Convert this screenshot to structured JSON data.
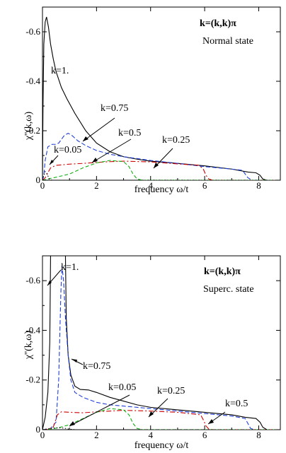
{
  "chart_data": [
    {
      "type": "line",
      "title_line1": "k=(k,k)π",
      "title_line2": "Normal state",
      "xlabel": "frequency ω/t",
      "ylabel": "χ''(k,ω)",
      "xlim": [
        0,
        8.8
      ],
      "ylim": [
        0,
        -0.7
      ],
      "x_ticks": [
        0,
        2,
        4,
        6,
        8
      ],
      "y_ticks": [
        0,
        -0.2,
        -0.4,
        -0.6
      ],
      "x_tick_labels": [
        "0",
        "2",
        "4",
        "6",
        "8"
      ],
      "y_tick_labels": [
        "0",
        "-0.2",
        "-0.4",
        "-0.6"
      ],
      "series": [
        {
          "name": "k=1.",
          "color": "#000000",
          "dash": "",
          "points": [
            [
              0,
              0
            ],
            [
              0.02,
              -0.3
            ],
            [
              0.05,
              -0.55
            ],
            [
              0.1,
              -0.64
            ],
            [
              0.15,
              -0.66
            ],
            [
              0.22,
              -0.62
            ],
            [
              0.3,
              -0.55
            ],
            [
              0.4,
              -0.49
            ],
            [
              0.5,
              -0.44
            ],
            [
              0.7,
              -0.375
            ],
            [
              0.9,
              -0.33
            ],
            [
              1.2,
              -0.27
            ],
            [
              1.6,
              -0.2
            ],
            [
              2,
              -0.15
            ],
            [
              2.5,
              -0.115
            ],
            [
              3,
              -0.095
            ],
            [
              3.5,
              -0.085
            ],
            [
              4,
              -0.077
            ],
            [
              5,
              -0.068
            ],
            [
              6,
              -0.058
            ],
            [
              7,
              -0.045
            ],
            [
              7.6,
              -0.033
            ],
            [
              7.9,
              -0.03
            ],
            [
              8.05,
              -0.02
            ],
            [
              8.15,
              -0.005
            ],
            [
              8.3,
              0
            ],
            [
              8.8,
              0
            ]
          ]
        },
        {
          "name": "k=0.75",
          "color": "#1f3fd9",
          "dash": "6,3",
          "points": [
            [
              0,
              0
            ],
            [
              0.05,
              -0.02
            ],
            [
              0.1,
              -0.08
            ],
            [
              0.2,
              -0.135
            ],
            [
              0.35,
              -0.145
            ],
            [
              0.5,
              -0.145
            ],
            [
              0.6,
              -0.15
            ],
            [
              0.8,
              -0.18
            ],
            [
              0.95,
              -0.19
            ],
            [
              1.1,
              -0.18
            ],
            [
              1.3,
              -0.16
            ],
            [
              1.6,
              -0.14
            ],
            [
              2,
              -0.12
            ],
            [
              2.5,
              -0.105
            ],
            [
              3,
              -0.095
            ],
            [
              4,
              -0.08
            ],
            [
              5,
              -0.068
            ],
            [
              6,
              -0.055
            ],
            [
              7,
              -0.045
            ],
            [
              7.4,
              -0.04
            ],
            [
              7.5,
              -0.025
            ],
            [
              7.6,
              -0.01
            ],
            [
              7.75,
              0
            ],
            [
              8.8,
              0
            ]
          ]
        },
        {
          "name": "k=0.5",
          "color": "#cc0000",
          "dash": "7,3,2,3",
          "points": [
            [
              0,
              0
            ],
            [
              0.1,
              -0.01
            ],
            [
              0.3,
              -0.05
            ],
            [
              0.5,
              -0.06
            ],
            [
              1,
              -0.065
            ],
            [
              1.5,
              -0.068
            ],
            [
              2,
              -0.072
            ],
            [
              2.5,
              -0.075
            ],
            [
              3,
              -0.077
            ],
            [
              4,
              -0.074
            ],
            [
              5,
              -0.066
            ],
            [
              5.8,
              -0.06
            ],
            [
              5.95,
              -0.045
            ],
            [
              6.05,
              -0.02
            ],
            [
              6.15,
              -0.005
            ],
            [
              6.3,
              0
            ],
            [
              8.8,
              0
            ]
          ]
        },
        {
          "name": "k=0.25",
          "color": "#10b010",
          "dash": "5,3",
          "points": [
            [
              0,
              0
            ],
            [
              0.2,
              -0.005
            ],
            [
              0.5,
              -0.012
            ],
            [
              1,
              -0.025
            ],
            [
              1.5,
              -0.05
            ],
            [
              2,
              -0.07
            ],
            [
              2.5,
              -0.08
            ],
            [
              3,
              -0.075
            ],
            [
              3.2,
              -0.055
            ],
            [
              3.35,
              -0.025
            ],
            [
              3.5,
              -0.005
            ],
            [
              3.7,
              0
            ],
            [
              8.8,
              0
            ]
          ]
        },
        {
          "name": "k=0.05",
          "color": "#000000",
          "dash": "1.5,2.5",
          "points": [
            [
              0,
              0
            ],
            [
              0.05,
              -0.02
            ],
            [
              0.1,
              -0.035
            ],
            [
              0.15,
              -0.03
            ],
            [
              0.25,
              -0.005
            ],
            [
              0.35,
              0
            ],
            [
              8.8,
              0
            ]
          ]
        }
      ],
      "annotations": [
        {
          "text": "k=1."
        },
        {
          "text": "k=0.75"
        },
        {
          "text": "k=0.5"
        },
        {
          "text": "k=0.25"
        },
        {
          "text": "k=0.05"
        }
      ]
    },
    {
      "type": "line",
      "title_line1": "k=(k,k)π",
      "title_line2": "Superc. state",
      "xlabel": "frequency ω/t",
      "ylabel": "χ''(k,ω)",
      "xlim": [
        0,
        8.8
      ],
      "ylim": [
        0,
        -0.7
      ],
      "x_ticks": [
        0,
        2,
        4,
        6,
        8
      ],
      "y_ticks": [
        0,
        -0.2,
        -0.4,
        -0.6
      ],
      "x_tick_labels": [
        "0",
        "2",
        "4",
        "6",
        "8"
      ],
      "y_tick_labels": [
        "0",
        "-0.2",
        "-0.4",
        "-0.6"
      ],
      "series": [
        {
          "name": "k=1.",
          "color": "#000000",
          "dash": "",
          "points": [
            [
              0,
              0
            ],
            [
              0.1,
              -0.05
            ],
            [
              0.2,
              -0.15
            ],
            [
              0.27,
              -0.35
            ],
            [
              0.3,
              -0.7
            ],
            [
              0.85,
              -0.7
            ],
            [
              0.88,
              -0.45
            ],
            [
              0.95,
              -0.3
            ],
            [
              1.05,
              -0.22
            ],
            [
              1.2,
              -0.175
            ],
            [
              1.4,
              -0.162
            ],
            [
              1.7,
              -0.16
            ],
            [
              2,
              -0.15
            ],
            [
              2.5,
              -0.13
            ],
            [
              3,
              -0.115
            ],
            [
              3.5,
              -0.1
            ],
            [
              4,
              -0.09
            ],
            [
              5,
              -0.08
            ],
            [
              6,
              -0.07
            ],
            [
              7,
              -0.06
            ],
            [
              7.5,
              -0.05
            ],
            [
              7.9,
              -0.045
            ],
            [
              8.05,
              -0.03
            ],
            [
              8.15,
              -0.01
            ],
            [
              8.3,
              0
            ],
            [
              8.8,
              0
            ]
          ]
        },
        {
          "name": "k=0.75",
          "color": "#1f3fd9",
          "dash": "6,3",
          "points": [
            [
              0,
              0
            ],
            [
              0.3,
              -0.005
            ],
            [
              0.5,
              -0.03
            ],
            [
              0.6,
              -0.2
            ],
            [
              0.68,
              -0.55
            ],
            [
              0.72,
              -0.66
            ],
            [
              0.78,
              -0.6
            ],
            [
              0.85,
              -0.45
            ],
            [
              0.95,
              -0.3
            ],
            [
              1.05,
              -0.2
            ],
            [
              1.2,
              -0.15
            ],
            [
              1.5,
              -0.13
            ],
            [
              2,
              -0.11
            ],
            [
              2.5,
              -0.1
            ],
            [
              3,
              -0.095
            ],
            [
              4,
              -0.085
            ],
            [
              5,
              -0.075
            ],
            [
              6,
              -0.065
            ],
            [
              7,
              -0.055
            ],
            [
              7.5,
              -0.045
            ],
            [
              7.6,
              -0.025
            ],
            [
              7.7,
              -0.005
            ],
            [
              7.85,
              0
            ],
            [
              8.8,
              0
            ]
          ]
        },
        {
          "name": "k=0.5",
          "color": "#cc0000",
          "dash": "7,3,2,3",
          "points": [
            [
              0,
              0
            ],
            [
              0.2,
              -0.002
            ],
            [
              0.4,
              -0.01
            ],
            [
              0.55,
              -0.06
            ],
            [
              0.7,
              -0.072
            ],
            [
              1,
              -0.07
            ],
            [
              1.5,
              -0.068
            ],
            [
              2,
              -0.072
            ],
            [
              2.5,
              -0.075
            ],
            [
              3,
              -0.078
            ],
            [
              4,
              -0.075
            ],
            [
              5,
              -0.07
            ],
            [
              5.85,
              -0.06
            ],
            [
              5.95,
              -0.04
            ],
            [
              6.05,
              -0.015
            ],
            [
              6.15,
              -0.003
            ],
            [
              6.3,
              0
            ],
            [
              8.8,
              0
            ]
          ]
        },
        {
          "name": "k=0.25",
          "color": "#10b010",
          "dash": "5,3",
          "points": [
            [
              0,
              0
            ],
            [
              0.3,
              -0.002
            ],
            [
              0.6,
              -0.008
            ],
            [
              1,
              -0.02
            ],
            [
              1.5,
              -0.045
            ],
            [
              2,
              -0.07
            ],
            [
              2.5,
              -0.085
            ],
            [
              3,
              -0.08
            ],
            [
              3.2,
              -0.06
            ],
            [
              3.35,
              -0.025
            ],
            [
              3.5,
              -0.005
            ],
            [
              3.7,
              0
            ],
            [
              8.8,
              0
            ]
          ]
        },
        {
          "name": "k=0.05",
          "color": "#000000",
          "dash": "1.5,2.5",
          "points": [
            [
              0,
              0
            ],
            [
              0.2,
              -0.003
            ],
            [
              0.4,
              -0.006
            ],
            [
              0.6,
              -0.008
            ],
            [
              0.8,
              -0.006
            ],
            [
              1,
              -0.002
            ],
            [
              1.2,
              0
            ],
            [
              8.8,
              0
            ]
          ]
        }
      ],
      "annotations": [
        {
          "text": "k=1."
        },
        {
          "text": "k=0.75"
        },
        {
          "text": "k=0.05"
        },
        {
          "text": "k=0.25"
        },
        {
          "text": "k=0.5"
        }
      ]
    }
  ]
}
